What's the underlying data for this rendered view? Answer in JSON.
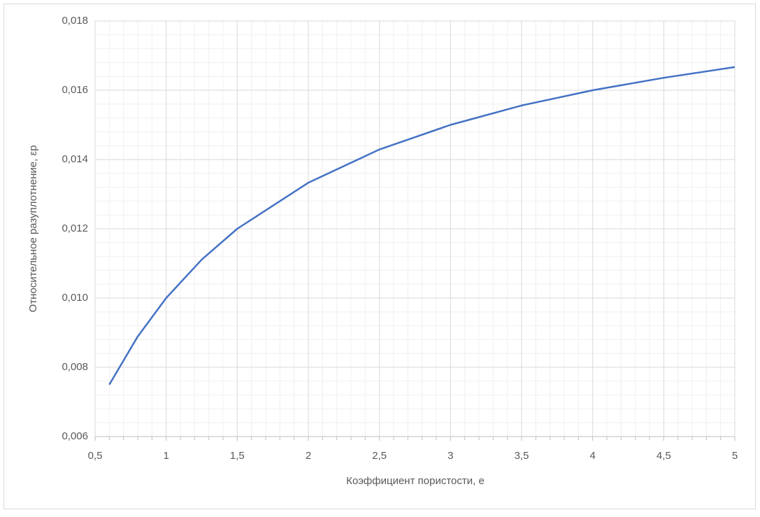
{
  "chart_data": {
    "type": "line",
    "x_label": "Коэффициент пористости, e",
    "y_label": "Относительное разуплотнение, εр",
    "x": [
      0.6,
      0.8,
      1.0,
      1.25,
      1.5,
      2,
      2.5,
      3,
      3.5,
      4,
      4.5,
      5
    ],
    "series": [
      {
        "name": "εр",
        "color": "#4472c4",
        "values": [
          0.0075,
          0.00889,
          0.01,
          0.01111,
          0.012,
          0.01333,
          0.01429,
          0.015,
          0.01556,
          0.016,
          0.01636,
          0.01667
        ]
      }
    ],
    "xlim": [
      0.5,
      5
    ],
    "xticks": [
      {
        "value": 0.5,
        "label": "0,5"
      },
      1,
      {
        "value": 1.5,
        "label": "1,5"
      },
      2,
      {
        "value": 2.5,
        "label": "2,5"
      },
      3,
      {
        "value": 3.5,
        "label": "3,5"
      },
      4,
      {
        "value": 4.5,
        "label": "4,5"
      },
      5
    ],
    "ylim": [
      0.006,
      0.018
    ],
    "yticks": [
      {
        "value": 0.006,
        "label": "0,006"
      },
      {
        "value": 0.008,
        "label": "0,008"
      },
      {
        "value": 0.01,
        "label": "0,010"
      },
      {
        "value": 0.012,
        "label": "0,012"
      },
      {
        "value": 0.014,
        "label": "0,014"
      },
      {
        "value": 0.016,
        "label": "0,016"
      },
      {
        "value": 0.018,
        "label": "0,018"
      }
    ],
    "grid": true,
    "minor_grid": true
  }
}
